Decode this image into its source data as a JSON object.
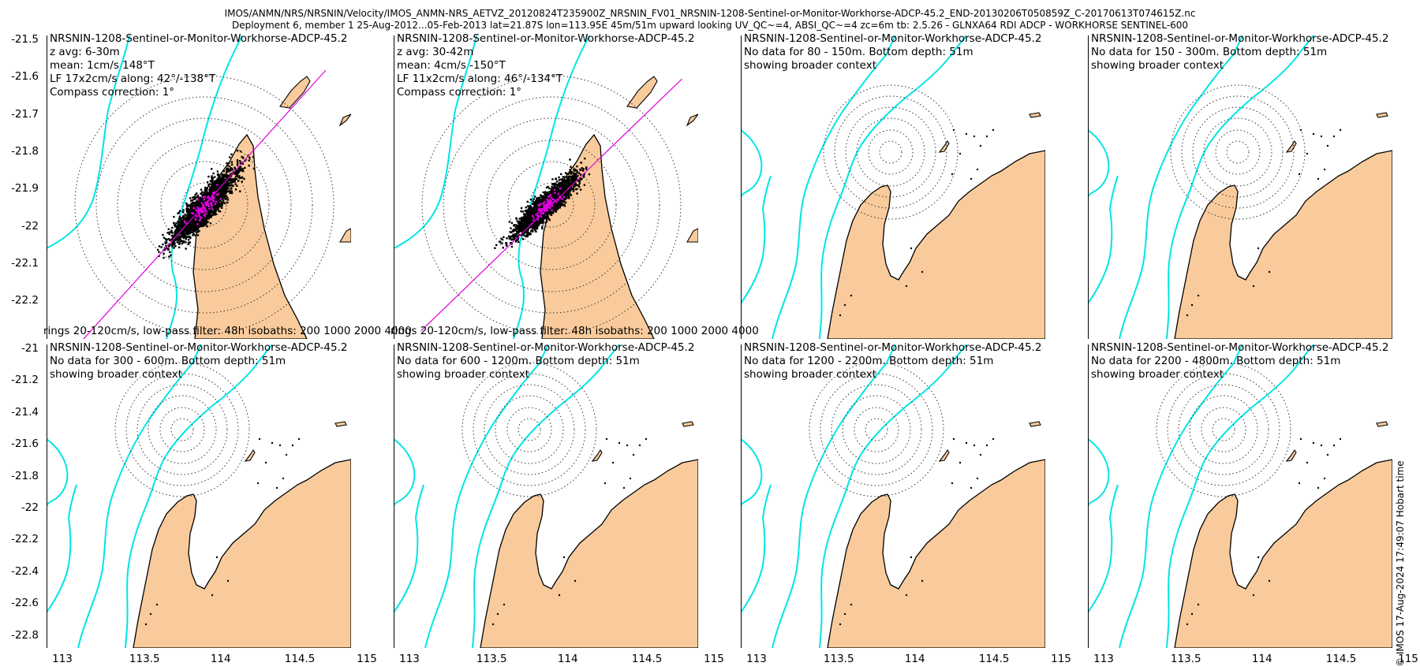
{
  "header": {
    "line1": "IMOS/ANMN/NRS/NRSNIN/Velocity/IMOS_ANMN-NRS_AETVZ_20120824T235900Z_NRSNIN_FV01_NRSNIN-1208-Sentinel-or-Monitor-Workhorse-ADCP-45.2_END-20130206T050859Z_C-20170613T074615Z.nc",
    "line2": "Deployment 6, member 1 25-Aug-2012...05-Feb-2013 lat=21.87S lon=113.95E 45m/51m upward looking UV_QC~=4, ABSI_QC~=4 zc=6m tb: 2.5.26 - GLNXA64 RDI ADCP - WORKHORSE SENTINEL-600"
  },
  "footer": "© IMOS 17-Aug-2024 17:49:07 Hobart time",
  "colors": {
    "land": "#f9cb9c",
    "isobath": "#00e5e5",
    "fit": "#e000e0",
    "scatter": "#000000",
    "ring": "#333333"
  },
  "chart_data": [
    {
      "type": "scatter",
      "panel": "top-1",
      "title": "NRSNIN-1208-Sentinel-or-Monitor-Workhorse-ADCP-45.2",
      "lines": [
        "z avg: 6-30m",
        "mean: 1cm/s 148°T",
        "LF 17x2cm/s along: 42°/-138°T",
        "Compass correction: 1°"
      ],
      "caption": "rings 20-120cm/s, low-pass filter: 48h isobaths: 200 1000 2000 4000",
      "yticks": [
        "-21.5",
        "-21.6",
        "-21.7",
        "-21.8",
        "-21.9",
        "-22",
        "-22.1",
        "-22.2"
      ],
      "xlim": [
        112.9,
        115.0
      ],
      "ylim": [
        -22.28,
        -21.45
      ],
      "center": [
        113.95,
        -21.87
      ],
      "rings_cm_s": [
        20,
        40,
        60,
        80,
        100,
        120
      ],
      "major_axis_deg": 42,
      "cloud_extent_cm_s": 80,
      "cloud_width_cm_s": 14
    },
    {
      "type": "scatter",
      "panel": "top-2",
      "title": "NRSNIN-1208-Sentinel-or-Monitor-Workhorse-ADCP-45.2",
      "lines": [
        "z avg: 30-42m",
        "mean: 4cm/s -150°T",
        "LF 11x2cm/s along: 46°/-134°T",
        "Compass correction: 1°"
      ],
      "caption": "rings 20-120cm/s, low-pass filter: 48h isobaths: 200 1000 2000 4000",
      "xlim": [
        112.9,
        115.0
      ],
      "ylim": [
        -22.28,
        -21.45
      ],
      "center": [
        113.95,
        -21.87
      ],
      "rings_cm_s": [
        20,
        40,
        60,
        80,
        100,
        120
      ],
      "major_axis_deg": 46,
      "cloud_extent_cm_s": 70,
      "cloud_width_cm_s": 12
    },
    {
      "type": "map",
      "panel": "top-3",
      "title": "NRSNIN-1208-Sentinel-or-Monitor-Workhorse-ADCP-45.2",
      "lines": [
        "No data for 80 - 150m. Bottom depth: 51m",
        "showing broader context"
      ]
    },
    {
      "type": "map",
      "panel": "top-4",
      "title": "NRSNIN-1208-Sentinel-or-Monitor-Workhorse-ADCP-45.2",
      "lines": [
        "No data for 150 - 300m. Bottom depth: 51m",
        "showing broader context"
      ]
    },
    {
      "type": "map",
      "panel": "bottom-1",
      "title": "NRSNIN-1208-Sentinel-or-Monitor-Workhorse-ADCP-45.2",
      "lines": [
        "No data for 300 - 600m. Bottom depth: 51m",
        "showing broader context"
      ],
      "yticks": [
        "-21",
        "-21.2",
        "-21.4",
        "-21.6",
        "-21.8",
        "-22",
        "-22.2",
        "-22.4",
        "-22.6",
        "-22.8"
      ],
      "xticks": [
        "113",
        "113.5",
        "114",
        "114.5",
        "115"
      ]
    },
    {
      "type": "map",
      "panel": "bottom-2",
      "title": "NRSNIN-1208-Sentinel-or-Monitor-Workhorse-ADCP-45.2",
      "lines": [
        "No data for 600 - 1200m. Bottom depth: 51m",
        "showing broader context"
      ],
      "xticks": [
        "113",
        "113.5",
        "114",
        "114.5",
        "115"
      ]
    },
    {
      "type": "map",
      "panel": "bottom-3",
      "title": "NRSNIN-1208-Sentinel-or-Monitor-Workhorse-ADCP-45.2",
      "lines": [
        "No data for 1200 - 2200m. Bottom depth: 51m",
        "showing broader context"
      ],
      "xticks": [
        "113",
        "113.5",
        "114",
        "114.5",
        "115"
      ]
    },
    {
      "type": "map",
      "panel": "bottom-4",
      "title": "NRSNIN-1208-Sentinel-or-Monitor-Workhorse-ADCP-45.2",
      "lines": [
        "No data for 2200 - 4800m. Bottom depth: 51m",
        "showing broader context"
      ],
      "xticks": [
        "113",
        "113.5",
        "114",
        "114.5",
        "115"
      ]
    }
  ]
}
